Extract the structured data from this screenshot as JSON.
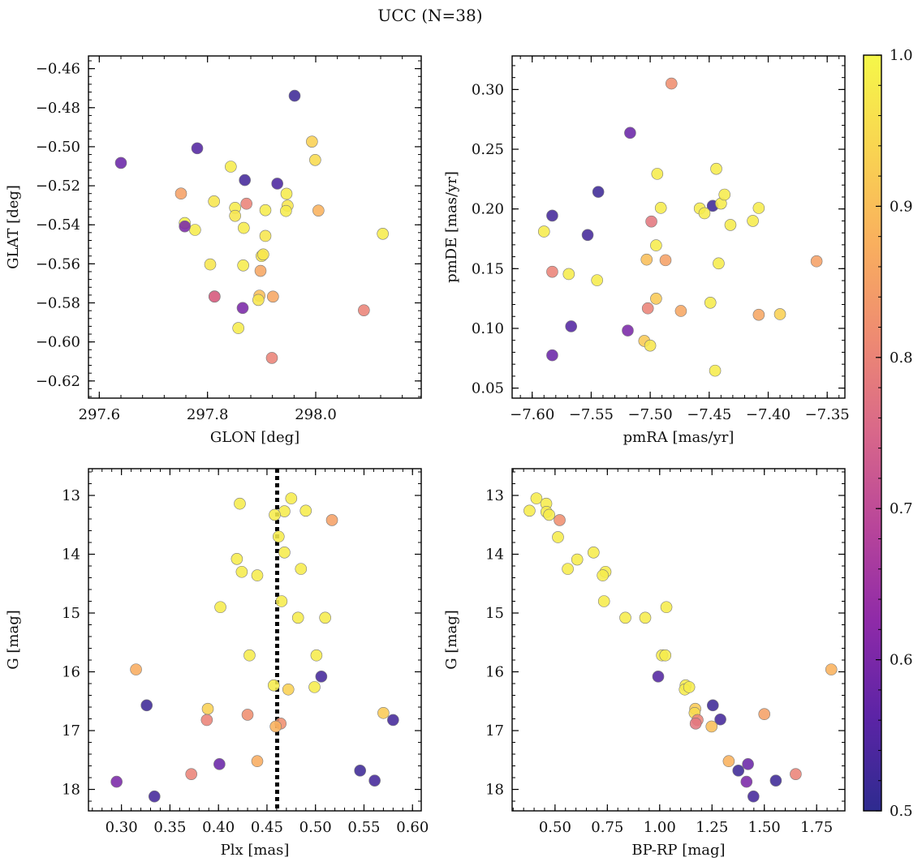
{
  "figure": {
    "title": "UCC (N=38)"
  },
  "chart_data": [
    {
      "type": "scatter",
      "name": "glon-glat",
      "xlabel": "GLON [deg]",
      "ylabel": "GLAT [deg]",
      "xlim": [
        297.58,
        298.195
      ],
      "ylim": [
        -0.6288,
        -0.4535
      ],
      "y_inverted": false,
      "xticks": [
        297.6,
        297.8,
        298.0
      ],
      "xtick_labels": [
        "297.6",
        "297.8",
        "298.0"
      ],
      "yticks": [
        -0.62,
        -0.6,
        -0.58,
        -0.56,
        -0.54,
        -0.52,
        -0.5,
        -0.48,
        -0.46
      ],
      "ytick_labels": [
        "−0.62",
        "−0.60",
        "−0.58",
        "−0.56",
        "−0.54",
        "−0.52",
        "−0.50",
        "−0.48",
        "−0.46"
      ],
      "x": [
        297.64,
        297.781,
        297.961,
        297.869,
        297.929,
        297.993,
        297.999,
        297.843,
        297.751,
        297.812,
        297.758,
        297.851,
        297.851,
        297.777,
        297.907,
        297.948,
        297.872,
        297.867,
        297.945,
        297.946,
        298.005,
        298.124,
        297.907,
        297.9,
        297.866,
        297.805,
        297.898,
        297.896,
        297.921,
        297.894,
        297.813,
        297.865,
        298.089,
        297.857,
        297.919,
        297.903,
        297.758,
        297.813
      ],
      "y": [
        -0.5083,
        -0.5008,
        -0.4739,
        -0.5171,
        -0.5189,
        -0.4974,
        -0.5068,
        -0.5102,
        -0.524,
        -0.528,
        -0.5391,
        -0.5313,
        -0.5354,
        -0.5426,
        -0.5325,
        -0.5302,
        -0.5292,
        -0.5416,
        -0.5329,
        -0.5241,
        -0.5327,
        -0.5446,
        -0.5457,
        -0.556,
        -0.5608,
        -0.5603,
        -0.5636,
        -0.5763,
        -0.5768,
        -0.5785,
        -0.5767,
        -0.5826,
        -0.5838,
        -0.5929,
        -0.6082,
        -0.5552,
        -0.5408,
        -0.5768
      ],
      "c": [
        0.58,
        0.55,
        0.52,
        0.53,
        0.54,
        0.93,
        0.95,
        0.98,
        0.85,
        0.97,
        0.99,
        0.98,
        0.97,
        0.98,
        0.98,
        0.97,
        0.8,
        0.98,
        0.98,
        0.98,
        0.88,
        0.98,
        0.97,
        0.97,
        0.98,
        0.97,
        0.86,
        0.9,
        0.86,
        0.97,
        0.78,
        0.6,
        0.8,
        0.98,
        0.8,
        0.97,
        0.6,
        0.75
      ]
    },
    {
      "type": "scatter",
      "name": "pmra-pmde",
      "xlabel": "pmRA [mas/yr]",
      "ylabel": "pmDE [mas/yr]",
      "xlim": [
        -7.617,
        -7.335
      ],
      "ylim": [
        0.0416,
        0.3281
      ],
      "y_inverted": false,
      "xticks": [
        -7.6,
        -7.55,
        -7.5,
        -7.45,
        -7.4,
        -7.35
      ],
      "xtick_labels": [
        "−7.60",
        "−7.55",
        "−7.50",
        "−7.45",
        "−7.40",
        "−7.35"
      ],
      "yticks": [
        0.05,
        0.1,
        0.15,
        0.2,
        0.25,
        0.3
      ],
      "ytick_labels": [
        "0.05",
        "0.10",
        "0.15",
        "0.20",
        "0.25",
        "0.30"
      ],
      "x": [
        -7.482,
        -7.517,
        -7.544,
        -7.583,
        -7.553,
        -7.59,
        -7.494,
        -7.444,
        -7.447,
        -7.44,
        -7.437,
        -7.458,
        -7.454,
        -7.432,
        -7.413,
        -7.408,
        -7.491,
        -7.499,
        -7.495,
        -7.583,
        -7.569,
        -7.545,
        -7.503,
        -7.487,
        -7.442,
        -7.359,
        -7.495,
        -7.449,
        -7.502,
        -7.474,
        -7.408,
        -7.39,
        -7.567,
        -7.519,
        -7.505,
        -7.5,
        -7.583,
        -7.445
      ],
      "y": [
        0.305,
        0.2637,
        0.2143,
        0.1944,
        0.1782,
        0.1811,
        0.2294,
        0.2336,
        0.2026,
        0.2045,
        0.212,
        0.2004,
        0.1964,
        0.1866,
        0.19,
        0.2008,
        0.2009,
        0.1895,
        0.1695,
        0.1474,
        0.1455,
        0.1403,
        0.1576,
        0.1571,
        0.1544,
        0.1562,
        0.1249,
        0.1215,
        0.1168,
        0.1146,
        0.1114,
        0.1119,
        0.1017,
        0.0982,
        0.0895,
        0.0856,
        0.0775,
        0.0646
      ],
      "c": [
        0.82,
        0.58,
        0.52,
        0.53,
        0.53,
        0.98,
        0.98,
        0.98,
        0.52,
        0.98,
        0.98,
        0.98,
        0.98,
        0.98,
        0.98,
        0.98,
        0.98,
        0.78,
        0.98,
        0.8,
        0.98,
        0.98,
        0.9,
        0.85,
        0.98,
        0.85,
        0.92,
        0.98,
        0.8,
        0.86,
        0.86,
        0.93,
        0.55,
        0.6,
        0.92,
        0.97,
        0.58,
        0.98
      ]
    },
    {
      "type": "scatter",
      "name": "plx-g",
      "xlabel": "Plx [mas]",
      "ylabel": "G [mag]",
      "xlim": [
        0.266,
        0.609
      ],
      "ylim": [
        18.365,
        12.545
      ],
      "y_inverted": true,
      "xticks": [
        0.3,
        0.35,
        0.4,
        0.45,
        0.5,
        0.55,
        0.6
      ],
      "xtick_labels": [
        "0.30",
        "0.35",
        "0.40",
        "0.45",
        "0.50",
        "0.55",
        "0.60"
      ],
      "yticks": [
        13,
        14,
        15,
        16,
        17,
        18
      ],
      "ytick_labels": [
        "13",
        "14",
        "15",
        "16",
        "17",
        "18"
      ],
      "vline": {
        "x": 0.4605,
        "style": "dotted",
        "color": "#000000"
      },
      "x": [
        0.475,
        0.422,
        0.468,
        0.458,
        0.49,
        0.517,
        0.462,
        0.468,
        0.419,
        0.424,
        0.44,
        0.485,
        0.402,
        0.465,
        0.482,
        0.51,
        0.432,
        0.501,
        0.315,
        0.506,
        0.457,
        0.499,
        0.472,
        0.326,
        0.389,
        0.57,
        0.43,
        0.388,
        0.58,
        0.464,
        0.459,
        0.44,
        0.401,
        0.372,
        0.546,
        0.561,
        0.295,
        0.334
      ],
      "y": [
        13.05,
        13.14,
        13.27,
        13.33,
        13.26,
        13.42,
        13.7,
        13.97,
        14.08,
        14.3,
        14.36,
        14.25,
        14.9,
        14.8,
        15.08,
        15.08,
        15.72,
        15.72,
        15.96,
        16.08,
        16.23,
        16.26,
        16.3,
        16.57,
        16.63,
        16.7,
        16.73,
        16.82,
        16.82,
        16.88,
        16.93,
        17.52,
        17.57,
        17.74,
        17.68,
        17.85,
        17.87,
        18.12
      ],
      "c": [
        0.98,
        0.98,
        0.98,
        0.98,
        0.98,
        0.85,
        0.98,
        0.98,
        0.98,
        0.98,
        0.98,
        0.98,
        0.98,
        0.98,
        0.98,
        0.98,
        0.98,
        0.98,
        0.87,
        0.53,
        0.98,
        0.98,
        0.93,
        0.52,
        0.93,
        0.92,
        0.82,
        0.8,
        0.53,
        0.82,
        0.88,
        0.87,
        0.58,
        0.8,
        0.52,
        0.53,
        0.6,
        0.53
      ]
    },
    {
      "type": "scatter",
      "name": "bprp-g",
      "xlabel": "BP-RP [mag]",
      "ylabel": "G [mag]",
      "xlim": [
        0.295,
        1.885
      ],
      "ylim": [
        18.365,
        12.545
      ],
      "y_inverted": true,
      "xticks": [
        0.5,
        0.75,
        1.0,
        1.25,
        1.5,
        1.75
      ],
      "xtick_labels": [
        "0.50",
        "0.75",
        "1.00",
        "1.25",
        "1.50",
        "1.75"
      ],
      "yticks": [
        13,
        14,
        15,
        16,
        17,
        18
      ],
      "ytick_labels": [
        "13",
        "14",
        "15",
        "16",
        "17",
        "18"
      ],
      "x": [
        0.378,
        0.411,
        0.458,
        0.459,
        0.472,
        0.522,
        0.514,
        0.684,
        0.606,
        0.741,
        0.728,
        0.561,
        0.734,
        1.032,
        0.836,
        0.931,
        1.011,
        1.027,
        1.82,
        0.993,
        1.124,
        1.12,
        1.141,
        1.254,
        1.17,
        1.167,
        1.5,
        1.29,
        1.181,
        1.172,
        1.248,
        1.33,
        1.422,
        1.65,
        1.376,
        1.555,
        1.415,
        1.448
      ],
      "y": [
        13.26,
        13.05,
        13.14,
        13.28,
        13.33,
        13.42,
        13.71,
        13.97,
        14.09,
        14.3,
        14.36,
        14.25,
        14.8,
        14.9,
        15.08,
        15.08,
        15.72,
        15.72,
        15.96,
        16.08,
        16.23,
        16.3,
        16.26,
        16.57,
        16.63,
        16.7,
        16.72,
        16.81,
        16.82,
        16.88,
        16.93,
        17.52,
        17.57,
        17.74,
        17.68,
        17.85,
        17.87,
        18.12
      ],
      "c": [
        0.98,
        0.98,
        0.98,
        0.98,
        0.98,
        0.82,
        0.98,
        0.98,
        0.98,
        0.98,
        0.98,
        0.98,
        0.98,
        0.98,
        0.98,
        0.98,
        0.98,
        0.98,
        0.88,
        0.55,
        0.98,
        0.98,
        0.98,
        0.52,
        0.92,
        0.95,
        0.85,
        0.53,
        0.8,
        0.78,
        0.9,
        0.88,
        0.58,
        0.8,
        0.52,
        0.52,
        0.6,
        0.53
      ]
    }
  ],
  "colorbar": {
    "colormap": "plasma",
    "range": [
      0.5,
      1.0
    ],
    "ticks": [
      0.5,
      0.6,
      0.7,
      0.8,
      0.9,
      1.0
    ],
    "tick_labels": [
      "0.5",
      "0.6",
      "0.7",
      "0.8",
      "0.9",
      "1.0"
    ],
    "stops": [
      "#2e2b8f",
      "#5c24a6",
      "#8e2aa8",
      "#b8459a",
      "#d8678a",
      "#ee8a72",
      "#f9af5e",
      "#f9d451",
      "#f5f749"
    ]
  },
  "style": {
    "marker_edge": "#7a7a7a",
    "marker_opacity": 0.88
  }
}
